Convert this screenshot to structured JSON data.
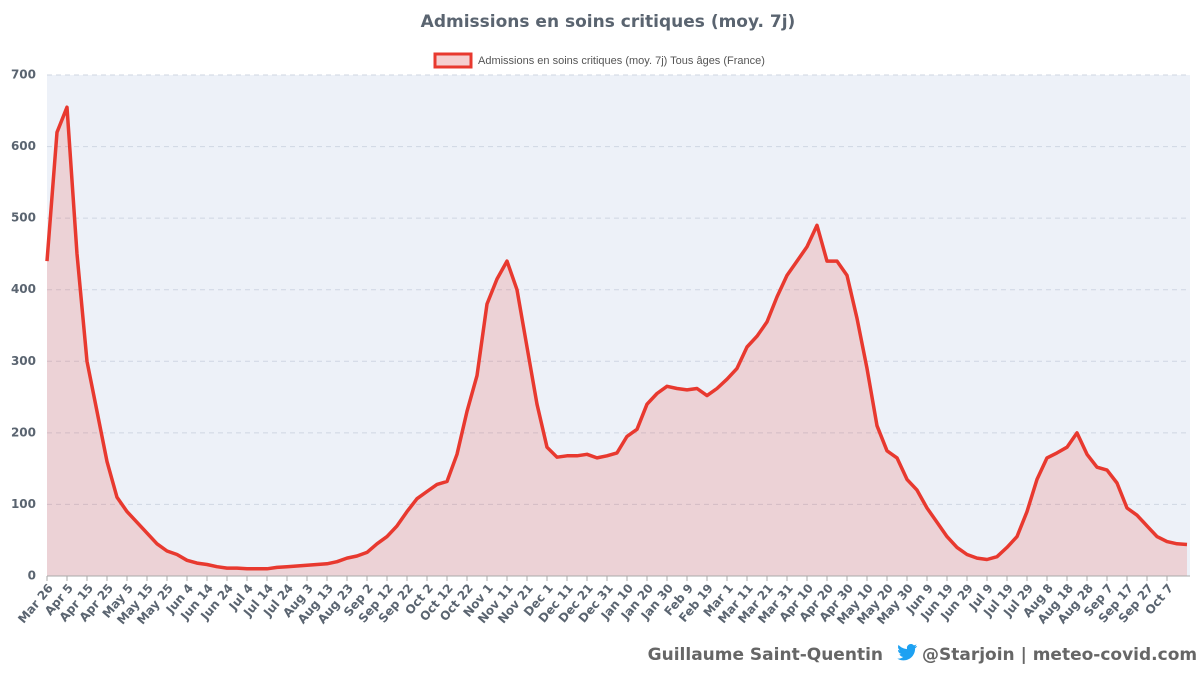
{
  "chart_data": {
    "type": "area",
    "title": "Admissions en soins critiques (moy. 7j)",
    "categories": [
      "Mar 26",
      null,
      "Apr 5",
      null,
      "Apr 15",
      null,
      "Apr 25",
      null,
      "May 5",
      null,
      "May 15",
      null,
      "May 25",
      null,
      "Jun 4",
      null,
      "Jun 14",
      null,
      "Jun 24",
      null,
      "Jul 4",
      null,
      "Jul 14",
      null,
      "Jul 24",
      null,
      "Aug 3",
      null,
      "Aug 13",
      null,
      "Aug 23",
      null,
      "Sep 2",
      null,
      "Sep 12",
      null,
      "Sep 22",
      null,
      "Oct 2",
      null,
      "Oct 12",
      null,
      "Oct 22",
      null,
      "Nov 1",
      null,
      "Nov 11",
      null,
      "Nov 21",
      null,
      "Dec 1",
      null,
      "Dec 11",
      null,
      "Dec 21",
      null,
      "Dec 31",
      null,
      "Jan 10",
      null,
      "Jan 20",
      null,
      "Jan 30",
      null,
      "Feb 9",
      null,
      "Feb 19",
      null,
      "Mar 1",
      null,
      "Mar 11",
      null,
      "Mar 21",
      null,
      "Mar 31",
      null,
      "Apr 10",
      null,
      "Apr 20",
      null,
      "Apr 30",
      null,
      "May 10",
      null,
      "May 20",
      null,
      "May 30",
      null,
      "Jun 9",
      null,
      "Jun 19",
      null,
      "Jun 29",
      null,
      "Jul 9",
      null,
      "Jul 19",
      null,
      "Jul 29",
      null,
      "Aug 8",
      null,
      "Aug 18",
      null,
      "Aug 28",
      null,
      "Sep 7",
      null,
      "Sep 17",
      null,
      "Sep 27",
      null,
      "Oct 7",
      null,
      null
    ],
    "series": [
      {
        "name": "Admissions en soins critiques (moy. 7j) Tous âges (France)",
        "color": "#e8392f",
        "values": [
          440,
          620,
          655,
          450,
          300,
          230,
          160,
          110,
          90,
          75,
          60,
          45,
          35,
          30,
          22,
          18,
          16,
          13,
          11,
          11,
          10,
          10,
          10,
          12,
          13,
          14,
          15,
          16,
          17,
          20,
          25,
          28,
          33,
          45,
          55,
          70,
          90,
          108,
          118,
          128,
          132,
          170,
          230,
          280,
          380,
          415,
          440,
          400,
          320,
          240,
          180,
          166,
          168,
          168,
          170,
          165,
          168,
          172,
          195,
          205,
          240,
          255,
          265,
          262,
          260,
          262,
          252,
          262,
          275,
          290,
          320,
          335,
          355,
          390,
          420,
          440,
          460,
          490,
          440,
          440,
          420,
          360,
          290,
          210,
          175,
          165,
          135,
          120,
          95,
          75,
          55,
          40,
          30,
          25,
          23,
          27,
          40,
          55,
          90,
          135,
          165,
          172,
          180,
          200,
          170,
          152,
          148,
          130,
          95,
          85,
          70,
          55,
          48,
          45,
          44
        ]
      }
    ],
    "ylim": [
      0,
      700
    ],
    "yticks": [
      0,
      100,
      200,
      300,
      400,
      500,
      600,
      700
    ],
    "grid": true,
    "legend": "top"
  },
  "footer": {
    "author": "Guillaume Saint-Quentin",
    "handle": "@Starjoin | meteo-covid.com"
  }
}
